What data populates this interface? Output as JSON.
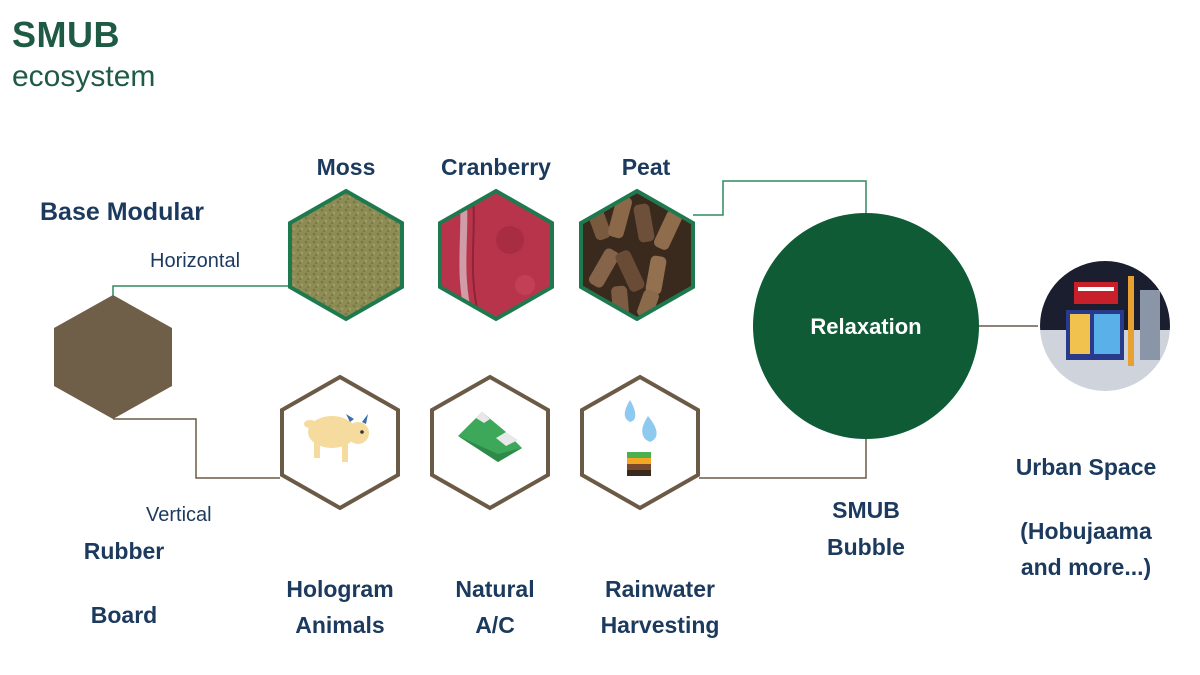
{
  "title": "SMUB",
  "subtitle": "ecosystem",
  "base_modular": "Base Modular",
  "horizontal": "Horizontal",
  "vertical": "Vertical",
  "rubber_line1": "Rubber",
  "rubber_line2": "Board",
  "top_materials": [
    {
      "label": "Moss",
      "icon": "moss-texture"
    },
    {
      "label": "Cranberry",
      "icon": "cranberry-texture"
    },
    {
      "label": "Peat",
      "icon": "peat-texture"
    }
  ],
  "bottom_features": [
    {
      "line1": "Hologram",
      "line2": "Animals",
      "icon": "goat-icon"
    },
    {
      "line1": "Natural",
      "line2": "A/C",
      "icon": "mountain-icon"
    },
    {
      "line1": "Rainwater",
      "line2": "Harvesting",
      "icon": "water-soil-icon"
    }
  ],
  "relaxation": "Relaxation",
  "smub_line1": "SMUB",
  "smub_line2": "Bubble",
  "urban_line1": "Urban Space",
  "urban_line2": "(Hobujaama",
  "urban_line3": "and more...)",
  "colors": {
    "title": "#1e5a44",
    "label": "#1c3a5e",
    "hex_green_border": "#1e7a4e",
    "hex_brown_border": "#6b5a45",
    "brown_fill": "#6f5f48",
    "relaxation_fill": "#0e5b36",
    "connector_green": "#2e8a5e",
    "connector_brown": "#6b5a45"
  }
}
